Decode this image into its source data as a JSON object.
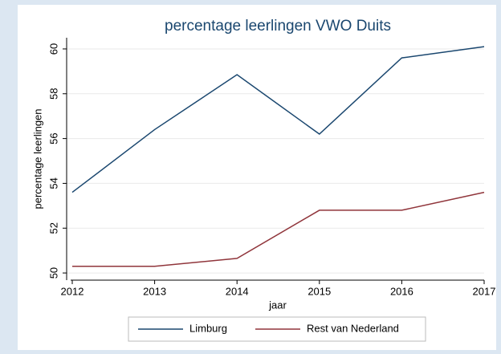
{
  "chart_data": {
    "type": "line",
    "title": "percentage leerlingen VWO Duits",
    "x_label": "jaar",
    "y_label": "percentage leerlingen",
    "x": [
      2012,
      2013,
      2014,
      2015,
      2016,
      2017
    ],
    "series": [
      {
        "name": "Limburg",
        "color": "#1a476f",
        "values": [
          53.6,
          56.4,
          58.85,
          56.2,
          59.6,
          60.1
        ]
      },
      {
        "name": "Rest van Nederland",
        "color": "#90353b",
        "values": [
          50.3,
          50.3,
          50.65,
          52.8,
          52.8,
          53.6
        ]
      }
    ],
    "xlim": [
      2012,
      2017
    ],
    "xticks": [
      2012,
      2013,
      2014,
      2015,
      2016,
      2017
    ],
    "ylim": [
      49.68,
      60.5
    ],
    "yticks": [
      50,
      52,
      54,
      56,
      58,
      60
    ],
    "grid": true,
    "legend": "bottom"
  }
}
